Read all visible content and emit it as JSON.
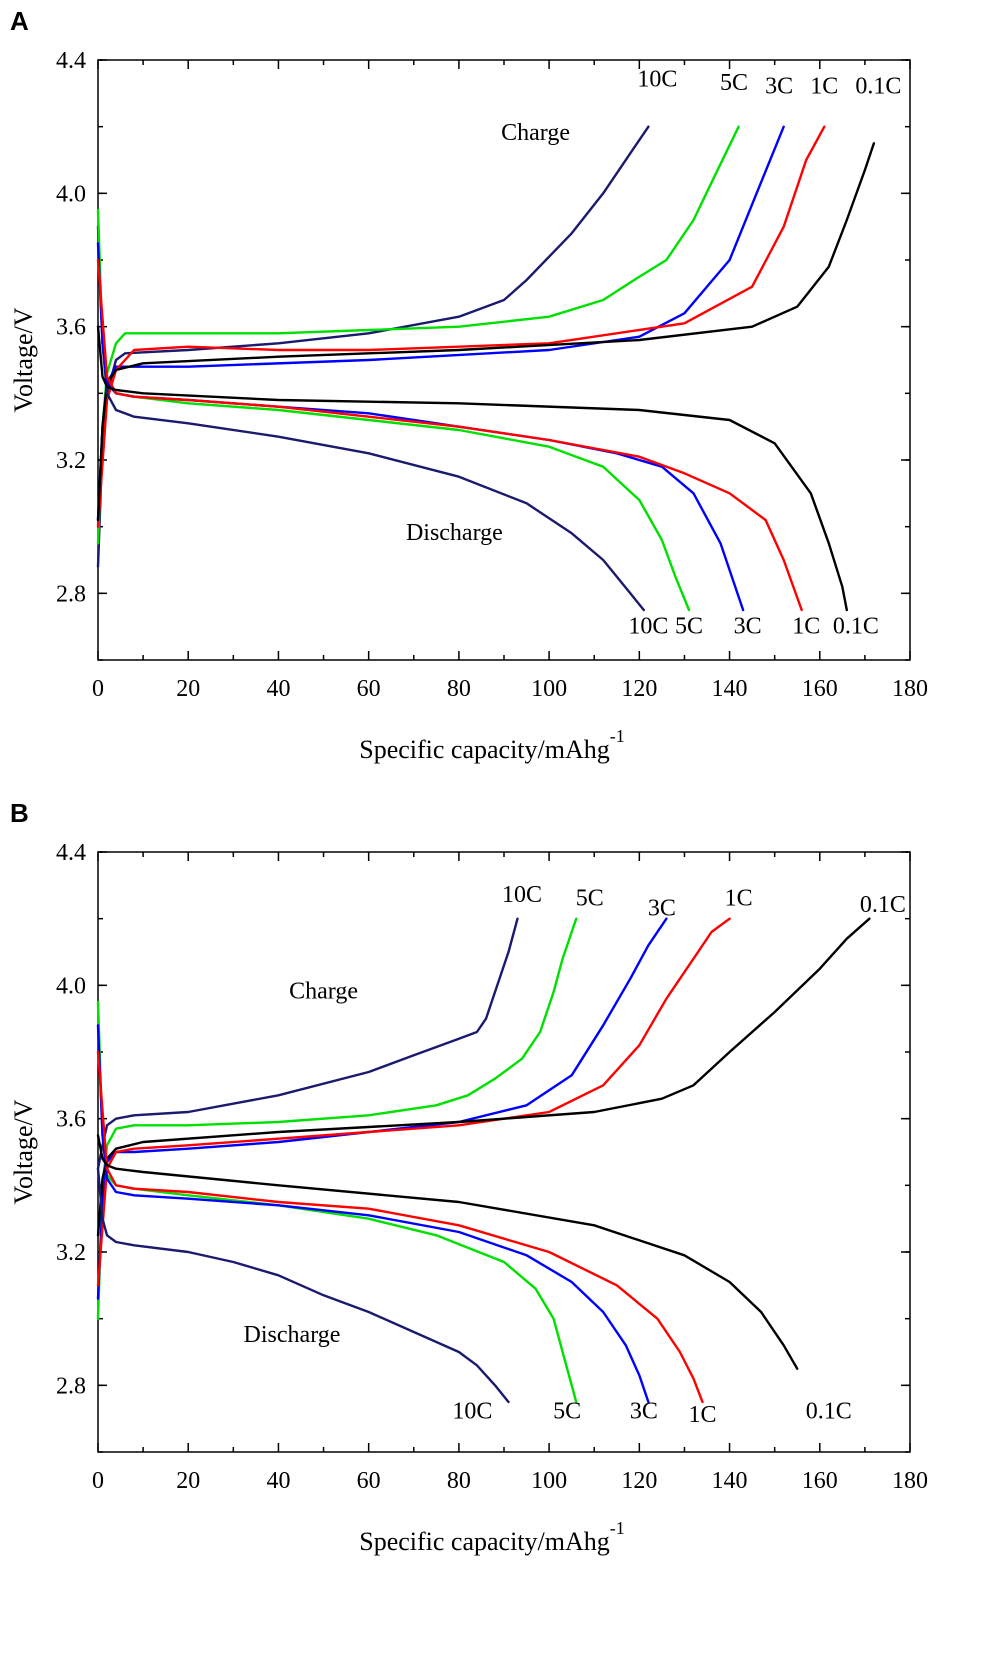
{
  "chart_data": [
    {
      "type": "line",
      "panel_label": "A",
      "xlabel": "Specific capacity/mAhg",
      "xlabel_superscript": "-1",
      "ylabel": "Voltage/V",
      "xlim": [
        0,
        180
      ],
      "ylim": [
        2.6,
        4.4
      ],
      "xticks": [
        0,
        20,
        40,
        60,
        80,
        100,
        120,
        140,
        160,
        180
      ],
      "xtick_labels": [
        "0",
        "20",
        "40",
        "60",
        "80",
        "100",
        "120",
        "140",
        "160",
        "180"
      ],
      "yticks": [
        2.8,
        3.2,
        3.6,
        4.0,
        4.4
      ],
      "ytick_labels": [
        "2.8",
        "3.2",
        "3.6",
        "4.0",
        "4.4"
      ],
      "annotations": [
        {
          "text": "Charge",
          "x": 97,
          "y": 4.16
        },
        {
          "text": "Discharge",
          "x": 79,
          "y": 2.96
        }
      ],
      "charge_labels": [
        {
          "text": "10C",
          "x": 124,
          "y": 4.32
        },
        {
          "text": "5C",
          "x": 141,
          "y": 4.31
        },
        {
          "text": "3C",
          "x": 151,
          "y": 4.3
        },
        {
          "text": "1C",
          "x": 161,
          "y": 4.3
        },
        {
          "text": "0.1C",
          "x": 173,
          "y": 4.3
        }
      ],
      "discharge_labels": [
        {
          "text": "10C",
          "x": 122,
          "y": 2.68
        },
        {
          "text": "5C",
          "x": 131,
          "y": 2.68
        },
        {
          "text": "3C",
          "x": 144,
          "y": 2.68
        },
        {
          "text": "1C",
          "x": 157,
          "y": 2.68
        },
        {
          "text": "0.1C",
          "x": 168,
          "y": 2.68
        }
      ],
      "series": [
        {
          "name": "10C",
          "kind": "charge",
          "color": "#1a1a6e",
          "x": [
            0,
            1,
            2,
            4,
            6,
            20,
            40,
            60,
            80,
            90,
            95,
            105,
            112,
            118,
            122
          ],
          "y": [
            2.88,
            3.25,
            3.4,
            3.5,
            3.52,
            3.53,
            3.55,
            3.58,
            3.63,
            3.68,
            3.74,
            3.88,
            4.0,
            4.12,
            4.2
          ]
        },
        {
          "name": "5C",
          "kind": "charge",
          "color": "#00e000",
          "x": [
            0,
            1,
            2,
            4,
            6,
            20,
            40,
            60,
            80,
            100,
            112,
            120,
            126,
            132,
            137,
            142
          ],
          "y": [
            2.95,
            3.3,
            3.46,
            3.55,
            3.58,
            3.58,
            3.58,
            3.59,
            3.6,
            3.63,
            3.68,
            3.75,
            3.8,
            3.92,
            4.06,
            4.2
          ]
        },
        {
          "name": "3C",
          "kind": "charge",
          "color": "#0000ff",
          "x": [
            0,
            1,
            2,
            4,
            8,
            20,
            60,
            100,
            120,
            130,
            140,
            146,
            152
          ],
          "y": [
            3.02,
            3.3,
            3.43,
            3.48,
            3.48,
            3.48,
            3.5,
            3.53,
            3.57,
            3.64,
            3.8,
            4.0,
            4.2
          ]
        },
        {
          "name": "1C",
          "kind": "charge",
          "color": "#ff0000",
          "x": [
            0,
            2,
            4,
            8,
            20,
            40,
            60,
            100,
            130,
            145,
            152,
            157,
            161
          ],
          "y": [
            3.0,
            3.38,
            3.47,
            3.53,
            3.54,
            3.53,
            3.53,
            3.55,
            3.61,
            3.72,
            3.9,
            4.1,
            4.2
          ]
        },
        {
          "name": "0.1C",
          "kind": "charge",
          "color": "#000000",
          "x": [
            0,
            1,
            2,
            4,
            10,
            40,
            80,
            120,
            145,
            155,
            162,
            166,
            170,
            172
          ],
          "y": [
            3.02,
            3.3,
            3.43,
            3.47,
            3.49,
            3.51,
            3.53,
            3.56,
            3.6,
            3.66,
            3.78,
            3.92,
            4.07,
            4.15
          ]
        },
        {
          "name": "10C",
          "kind": "discharge",
          "color": "#1a1a6e",
          "x": [
            0,
            1,
            2,
            4,
            8,
            20,
            40,
            60,
            80,
            95,
            105,
            112,
            118,
            121
          ],
          "y": [
            3.9,
            3.55,
            3.4,
            3.35,
            3.33,
            3.31,
            3.27,
            3.22,
            3.15,
            3.07,
            2.98,
            2.9,
            2.8,
            2.75
          ]
        },
        {
          "name": "5C",
          "kind": "discharge",
          "color": "#00e000",
          "x": [
            0,
            1,
            2,
            4,
            8,
            20,
            40,
            60,
            80,
            100,
            112,
            120,
            125,
            128,
            131
          ],
          "y": [
            3.95,
            3.55,
            3.43,
            3.4,
            3.39,
            3.37,
            3.35,
            3.32,
            3.29,
            3.24,
            3.18,
            3.08,
            2.96,
            2.85,
            2.75
          ]
        },
        {
          "name": "3C",
          "kind": "discharge",
          "color": "#0000ff",
          "x": [
            0,
            1,
            2,
            4,
            8,
            20,
            40,
            60,
            80,
            100,
            115,
            125,
            132,
            138,
            143
          ],
          "y": [
            3.85,
            3.55,
            3.43,
            3.4,
            3.39,
            3.38,
            3.36,
            3.34,
            3.3,
            3.26,
            3.22,
            3.18,
            3.1,
            2.95,
            2.75
          ]
        },
        {
          "name": "1C",
          "kind": "discharge",
          "color": "#ff0000",
          "x": [
            0,
            2,
            4,
            8,
            20,
            40,
            60,
            80,
            100,
            120,
            130,
            140,
            148,
            152,
            156
          ],
          "y": [
            3.8,
            3.45,
            3.4,
            3.39,
            3.38,
            3.36,
            3.33,
            3.3,
            3.26,
            3.21,
            3.16,
            3.1,
            3.02,
            2.9,
            2.75
          ]
        },
        {
          "name": "0.1C",
          "kind": "discharge",
          "color": "#000000",
          "x": [
            0,
            1,
            2,
            4,
            10,
            40,
            80,
            120,
            140,
            150,
            158,
            162,
            165,
            166
          ],
          "y": [
            3.6,
            3.45,
            3.42,
            3.41,
            3.4,
            3.38,
            3.37,
            3.35,
            3.32,
            3.25,
            3.1,
            2.95,
            2.82,
            2.75
          ]
        }
      ]
    },
    {
      "type": "line",
      "panel_label": "B",
      "xlabel": "Specific capacity/mAhg",
      "xlabel_superscript": "-1",
      "ylabel": "Voltage/V",
      "xlim": [
        0,
        180
      ],
      "ylim": [
        2.6,
        4.4
      ],
      "xticks": [
        0,
        20,
        40,
        60,
        80,
        100,
        120,
        140,
        160,
        180
      ],
      "xtick_labels": [
        "0",
        "20",
        "40",
        "60",
        "80",
        "100",
        "120",
        "140",
        "160",
        "180"
      ],
      "yticks": [
        2.8,
        3.2,
        3.6,
        4.0,
        4.4
      ],
      "ytick_labels": [
        "2.8",
        "3.2",
        "3.6",
        "4.0",
        "4.4"
      ],
      "annotations": [
        {
          "text": "Charge",
          "x": 50,
          "y": 3.96
        },
        {
          "text": "Discharge",
          "x": 43,
          "y": 2.93
        }
      ],
      "charge_labels": [
        {
          "text": "10C",
          "x": 94,
          "y": 4.25
        },
        {
          "text": "5C",
          "x": 109,
          "y": 4.24
        },
        {
          "text": "3C",
          "x": 125,
          "y": 4.21
        },
        {
          "text": "1C",
          "x": 142,
          "y": 4.24
        },
        {
          "text": "0.1C",
          "x": 174,
          "y": 4.22
        }
      ],
      "discharge_labels": [
        {
          "text": "10C",
          "x": 83,
          "y": 2.7
        },
        {
          "text": "5C",
          "x": 104,
          "y": 2.7
        },
        {
          "text": "3C",
          "x": 121,
          "y": 2.7
        },
        {
          "text": "1C",
          "x": 134,
          "y": 2.69
        },
        {
          "text": "0.1C",
          "x": 162,
          "y": 2.7
        }
      ],
      "series": [
        {
          "name": "10C",
          "kind": "charge",
          "color": "#1a1a6e",
          "x": [
            0,
            1,
            2,
            4,
            8,
            20,
            40,
            60,
            70,
            80,
            84,
            86,
            88,
            91,
            93
          ],
          "y": [
            3.45,
            3.52,
            3.58,
            3.6,
            3.61,
            3.62,
            3.67,
            3.74,
            3.79,
            3.84,
            3.86,
            3.9,
            3.98,
            4.1,
            4.2
          ]
        },
        {
          "name": "5C",
          "kind": "charge",
          "color": "#00e000",
          "x": [
            0,
            1,
            2,
            4,
            8,
            20,
            40,
            60,
            75,
            82,
            88,
            94,
            98,
            101,
            103,
            106
          ],
          "y": [
            3.0,
            3.4,
            3.52,
            3.57,
            3.58,
            3.58,
            3.59,
            3.61,
            3.64,
            3.67,
            3.72,
            3.78,
            3.86,
            3.98,
            4.08,
            4.2
          ]
        },
        {
          "name": "3C",
          "kind": "charge",
          "color": "#0000ff",
          "x": [
            0,
            1,
            2,
            4,
            8,
            20,
            40,
            60,
            80,
            95,
            105,
            112,
            118,
            122,
            126
          ],
          "y": [
            3.06,
            3.35,
            3.47,
            3.5,
            3.5,
            3.51,
            3.53,
            3.56,
            3.59,
            3.64,
            3.73,
            3.88,
            4.02,
            4.12,
            4.2
          ]
        },
        {
          "name": "1C",
          "kind": "charge",
          "color": "#ff0000",
          "x": [
            0,
            2,
            4,
            8,
            20,
            40,
            60,
            80,
            100,
            112,
            120,
            126,
            132,
            136,
            140
          ],
          "y": [
            3.1,
            3.45,
            3.5,
            3.51,
            3.52,
            3.54,
            3.56,
            3.58,
            3.62,
            3.7,
            3.82,
            3.96,
            4.08,
            4.16,
            4.2
          ]
        },
        {
          "name": "0.1C",
          "kind": "charge",
          "color": "#000000",
          "x": [
            0,
            1,
            2,
            4,
            10,
            40,
            80,
            110,
            125,
            132,
            140,
            150,
            160,
            166,
            171
          ],
          "y": [
            3.25,
            3.42,
            3.48,
            3.51,
            3.53,
            3.56,
            3.59,
            3.62,
            3.66,
            3.7,
            3.8,
            3.92,
            4.05,
            4.14,
            4.2
          ]
        },
        {
          "name": "10C",
          "kind": "discharge",
          "color": "#1a1a6e",
          "x": [
            0,
            1,
            2,
            4,
            8,
            20,
            30,
            40,
            50,
            60,
            70,
            80,
            84,
            88,
            91
          ],
          "y": [
            3.45,
            3.3,
            3.25,
            3.23,
            3.22,
            3.2,
            3.17,
            3.13,
            3.07,
            3.02,
            2.96,
            2.9,
            2.86,
            2.8,
            2.75
          ]
        },
        {
          "name": "5C",
          "kind": "discharge",
          "color": "#00e000",
          "x": [
            0,
            1,
            2,
            4,
            8,
            20,
            40,
            60,
            75,
            90,
            97,
            101,
            103,
            105,
            106
          ],
          "y": [
            3.95,
            3.55,
            3.43,
            3.4,
            3.39,
            3.37,
            3.34,
            3.3,
            3.25,
            3.17,
            3.09,
            3.0,
            2.9,
            2.8,
            2.75
          ]
        },
        {
          "name": "3C",
          "kind": "discharge",
          "color": "#0000ff",
          "x": [
            0,
            1,
            2,
            4,
            8,
            20,
            40,
            60,
            80,
            95,
            105,
            112,
            117,
            120,
            122
          ],
          "y": [
            3.88,
            3.55,
            3.42,
            3.38,
            3.37,
            3.36,
            3.34,
            3.31,
            3.26,
            3.19,
            3.11,
            3.02,
            2.92,
            2.83,
            2.75
          ]
        },
        {
          "name": "1C",
          "kind": "discharge",
          "color": "#ff0000",
          "x": [
            0,
            2,
            4,
            8,
            20,
            40,
            60,
            80,
            100,
            115,
            124,
            129,
            132,
            134
          ],
          "y": [
            3.8,
            3.45,
            3.4,
            3.39,
            3.38,
            3.35,
            3.33,
            3.28,
            3.2,
            3.1,
            3.0,
            2.9,
            2.82,
            2.75
          ]
        },
        {
          "name": "0.1C",
          "kind": "discharge",
          "color": "#000000",
          "x": [
            0,
            1,
            2,
            4,
            10,
            40,
            80,
            110,
            130,
            140,
            147,
            152,
            155
          ],
          "y": [
            3.55,
            3.48,
            3.46,
            3.45,
            3.44,
            3.4,
            3.35,
            3.28,
            3.19,
            3.11,
            3.02,
            2.92,
            2.85
          ]
        }
      ]
    }
  ]
}
